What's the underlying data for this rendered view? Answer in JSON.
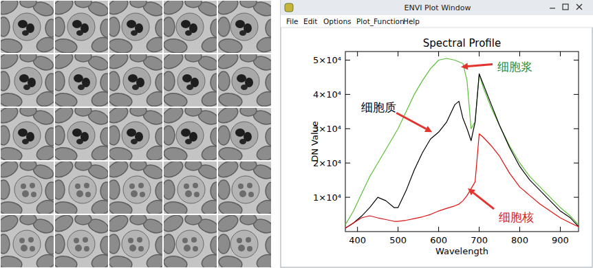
{
  "window": {
    "title": "ENVI Plot Window",
    "menu": [
      "File",
      "Edit",
      "Options",
      "Plot_Function",
      "Help"
    ]
  },
  "chart_data": {
    "type": "line",
    "title": "Spectral Profile",
    "x_label": "Wavelength",
    "y_label": "DN Value",
    "x": [
      370,
      390,
      410,
      430,
      450,
      470,
      490,
      500,
      520,
      540,
      560,
      580,
      600,
      620,
      640,
      650,
      660,
      670,
      680,
      690,
      700,
      710,
      730,
      750,
      775,
      800,
      825,
      850,
      875,
      900,
      925,
      945
    ],
    "series": [
      {
        "color": "#5cbf3a",
        "values": [
          2000,
          6000,
          11000,
          16000,
          20000,
          24000,
          28000,
          30000,
          35000,
          40000,
          44000,
          47500,
          50000,
          50500,
          50000,
          49500,
          49000,
          44000,
          30000,
          32000,
          46000,
          42000,
          36000,
          31000,
          25000,
          20000,
          16000,
          13000,
          10000,
          7000,
          4500,
          2000
        ]
      },
      {
        "color": "#000000",
        "values": [
          1000,
          2500,
          4500,
          7000,
          10000,
          9000,
          7000,
          7000,
          12000,
          18000,
          23000,
          27000,
          29000,
          32000,
          37000,
          38000,
          33000,
          30000,
          26500,
          32000,
          46000,
          43000,
          37000,
          31000,
          24500,
          19000,
          15000,
          12000,
          9000,
          6000,
          4000,
          1500
        ]
      },
      {
        "color": "#e01010",
        "values": [
          1000,
          2500,
          4000,
          4600,
          4000,
          3500,
          3000,
          3000,
          3300,
          3800,
          4300,
          5000,
          6000,
          6800,
          7500,
          8000,
          9000,
          10500,
          12500,
          14500,
          28500,
          27500,
          25000,
          22000,
          17000,
          13000,
          10500,
          8000,
          6000,
          4000,
          2500,
          1400
        ]
      }
    ],
    "xlim": [
      370,
      945
    ],
    "xticks": [
      400,
      500,
      600,
      700,
      800,
      900
    ],
    "ylim": [
      0,
      52500
    ],
    "yticks": [
      {
        "value": 10000,
        "label": "1×10⁴"
      },
      {
        "value": 20000,
        "label": "2×10⁴"
      },
      {
        "value": 30000,
        "label": "3×10⁴"
      },
      {
        "value": 40000,
        "label": "4×10⁴"
      },
      {
        "value": 50000,
        "label": "5×10⁴"
      }
    ],
    "grid": false,
    "annotations": [
      {
        "text": "细胞浆",
        "color": "#2e8b2e",
        "x": 655,
        "y": 48000
      },
      {
        "text": "细胞质",
        "color": "#000000",
        "x": 584,
        "y": 29000
      },
      {
        "text": "细胞核",
        "color": "#d02020",
        "x": 672,
        "y": 12600
      }
    ]
  }
}
